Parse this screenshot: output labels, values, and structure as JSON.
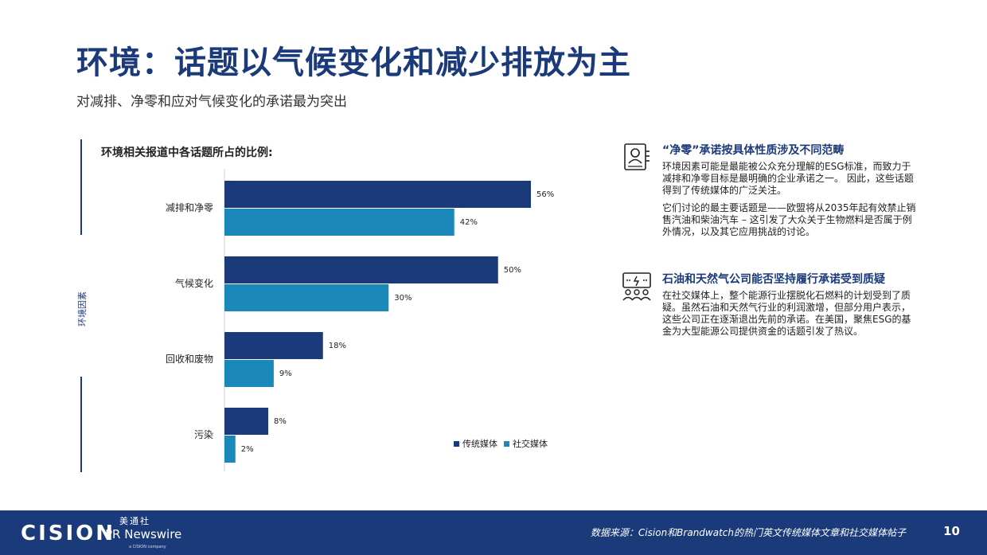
{
  "header": {
    "title": "环境：话题以气候变化和减少排放为主",
    "subtitle": "对减排、净零和应对气候变化的承诺最为突出"
  },
  "side_label": "环境因素",
  "colors": {
    "traditional": "#1b3a7a",
    "social": "#1a88b8",
    "brand": "#1b3a7a",
    "accent": "#e8443b"
  },
  "chart_data": {
    "type": "bar",
    "orientation": "horizontal",
    "title": "环境相关报道中各话题所占的比例:",
    "categories": [
      "减排和净零",
      "气候变化",
      "回收和废物",
      "污染"
    ],
    "series": [
      {
        "name": "传统媒体",
        "values": [
          56,
          50,
          18,
          8
        ]
      },
      {
        "name": "社交媒体",
        "values": [
          42,
          30,
          9,
          2
        ]
      }
    ],
    "data_labels": [
      [
        "56%",
        "50%",
        "18%",
        "8%"
      ],
      [
        "42%",
        "30%",
        "9%",
        "2%"
      ]
    ],
    "unit": "%",
    "xlim": [
      0,
      70
    ],
    "legend_position": "bottom-right",
    "grid": false
  },
  "panels": [
    {
      "icon": "id-badge-icon",
      "title": "“净零”承诺按具体性质涉及不同范畴",
      "paragraphs": [
        "环境因素可能是最能被公众充分理解的ESG标准，而致力于减排和净零目标是最明确的企业承诺之一。 因此，这些话题得到了传统媒体的广泛关注。",
        "它们讨论的最主要话题是——欧盟将从2035年起有效禁止销售汽油和柴油汽车 – 这引发了大众关于生物燃料是否属于例外情况，以及其它应用挑战的讨论。"
      ]
    },
    {
      "icon": "people-discussion-icon",
      "title": "石油和天然气公司能否坚持履行承诺受到质疑",
      "paragraphs": [
        "在社交媒体上，整个能源行业摆脱化石燃料的计划受到了质疑。虽然石油和天然气行业的利润激增，但部分用户表示，这些公司正在逐渐退出先前的承诺。在美国，聚焦ESG的基金为大型能源公司提供资金的话题引发了热议。"
      ]
    }
  ],
  "footer": {
    "logo_cision": "CISION",
    "logo_cn": "美通社",
    "logo_pr": "PR Newswire",
    "logo_small": "a CISION company",
    "source": "数据来源：Cision和Brandwatch的热门英文传统媒体文章和社交媒体帖子",
    "page_number": "10"
  }
}
